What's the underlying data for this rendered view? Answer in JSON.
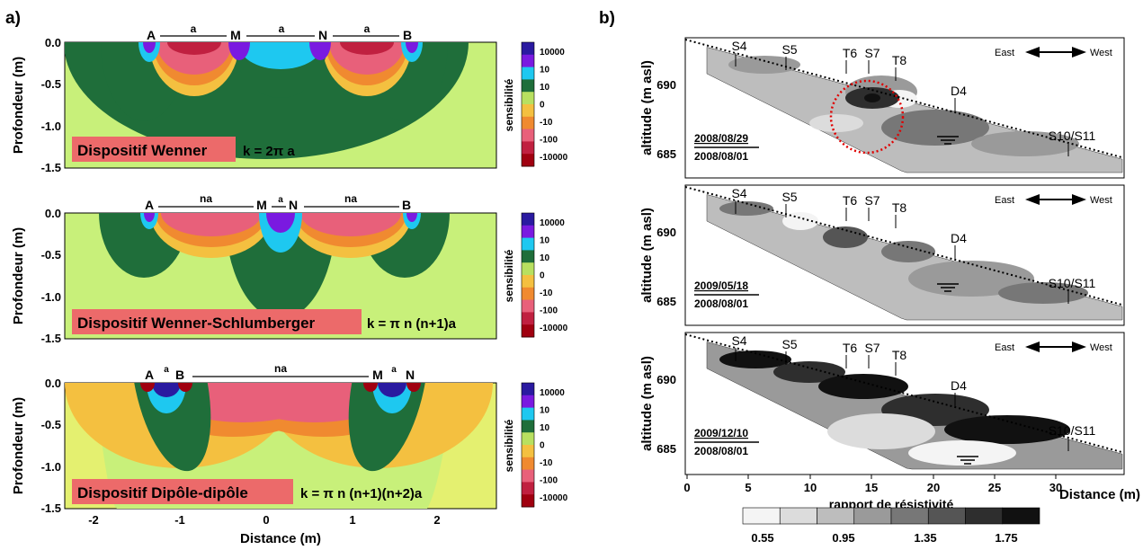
{
  "panel_a": {
    "panel_label": "a)",
    "ylabel": "Profondeur (m)",
    "xlabel": "Distance (m)",
    "x_ticks": [
      "-2",
      "-1",
      "0",
      "1",
      "2"
    ],
    "y_ticks": [
      "0.0",
      "-0.5",
      "-1.0",
      "-1.5"
    ],
    "colorbar_label": "sensibilité",
    "colorbar_ticks": [
      "10000",
      "10",
      "10",
      "0",
      "-10",
      "-100",
      "-10000"
    ],
    "colorbar_colors": [
      "#2a1aa0",
      "#7a1ae0",
      "#1ec8f0",
      "#1f6e3a",
      "#b8e060",
      "#f4c040",
      "#f08a30",
      "#e8607a",
      "#c02040",
      "#a00010"
    ],
    "plots": [
      {
        "title": "Dispositif Wenner",
        "k": "k = 2π a",
        "labels": [
          {
            "t": "A"
          },
          {
            "t": "a"
          },
          {
            "t": "M"
          },
          {
            "t": "a"
          },
          {
            "t": "N"
          },
          {
            "t": "a"
          },
          {
            "t": "B"
          }
        ]
      },
      {
        "title": "Dispositif Wenner-Schlumberger",
        "k": "k = π n (n+1)a",
        "labels": [
          {
            "t": "A"
          },
          {
            "t": "na"
          },
          {
            "t": "M"
          },
          {
            "t": "a"
          },
          {
            "t": "N"
          },
          {
            "t": "na"
          },
          {
            "t": "B"
          }
        ]
      },
      {
        "title": "Dispositif Dipôle-dipôle",
        "k": "k = π n (n+1)(n+2)a",
        "labels": [
          {
            "t": "A"
          },
          {
            "t": "a"
          },
          {
            "t": "B"
          },
          {
            "t": "na"
          },
          {
            "t": "M"
          },
          {
            "t": "a"
          },
          {
            "t": "N"
          }
        ]
      }
    ]
  },
  "panel_b": {
    "panel_label": "b)",
    "ylabel": "altitude (m asl)",
    "xlabel": "Distance (m)",
    "x_ticks": [
      "0",
      "5",
      "10",
      "15",
      "20",
      "25",
      "30"
    ],
    "y_ticks": [
      "690",
      "685"
    ],
    "direction_east": "East",
    "direction_west": "West",
    "site_labels": [
      "S4",
      "S5",
      "T6",
      "S7",
      "T8",
      "D4",
      "S10/S11"
    ],
    "colorbar_label": "rapport de résistivité",
    "colorbar_ticks": [
      "0.55",
      "0.95",
      "1.35",
      "1.75"
    ],
    "colorbar_colors": [
      "#f4f4f4",
      "#dcdcdc",
      "#bdbdbd",
      "#9a9a9a",
      "#777777",
      "#555555",
      "#2e2e2e",
      "#111111"
    ],
    "plots": [
      {
        "date_top": "2008/08/29",
        "date_bottom": "2008/08/01"
      },
      {
        "date_top": "2009/05/18",
        "date_bottom": "2008/08/01"
      },
      {
        "date_top": "2009/12/10",
        "date_bottom": "2008/08/01"
      }
    ]
  }
}
